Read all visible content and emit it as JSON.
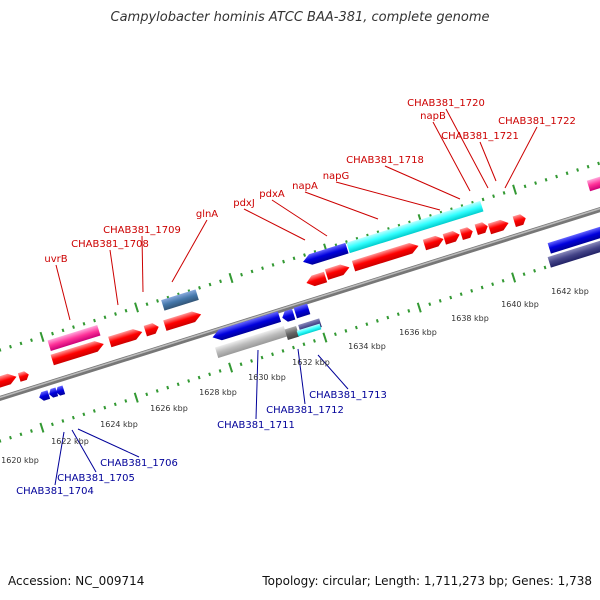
{
  "title": "Campylobacter hominis ATCC BAA-381, complete genome",
  "footer": {
    "accession": "Accession: NC_009714",
    "summary": "Topology: circular; Length: 1,711,273 bp; Genes: 1,738"
  },
  "axis": {
    "unit": "kbp",
    "ticks": [
      "1620 kbp",
      "1622 kbp",
      "1624 kbp",
      "1626 kbp",
      "1628 kbp",
      "1630 kbp",
      "1632 kbp",
      "1634 kbp",
      "1636 kbp",
      "1638 kbp",
      "1640 kbp",
      "1642 kbp"
    ]
  },
  "colors": {
    "forward_label": "#cc0000",
    "reverse_label": "#000099",
    "backbone": "#888888",
    "forward_gene": "#ff0000",
    "reverse_gene": "#0000cc",
    "highlight_cyan": "#33ffff",
    "magenta_gene": "#ff3399",
    "steel_gene": "#4477aa",
    "grey_gene": "#bbbbbb",
    "slate_gene": "#444488",
    "dot_green": "#339933"
  },
  "forward_labels": [
    "uvrB",
    "CHAB381_1708",
    "CHAB381_1709",
    "glnA",
    "pdxJ",
    "pdxA",
    "napA",
    "napG",
    "CHAB381_1718",
    "napB",
    "CHAB381_1720",
    "CHAB381_1721",
    "CHAB381_1722"
  ],
  "reverse_labels": [
    "CHAB381_1704",
    "CHAB381_1705",
    "CHAB381_1706",
    "CHAB381_1711",
    "CHAB381_1712",
    "CHAB381_1713"
  ]
}
